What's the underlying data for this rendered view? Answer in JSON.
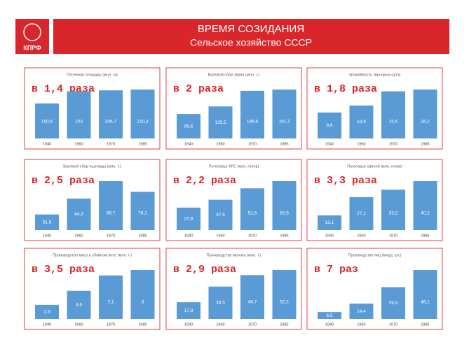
{
  "header": {
    "logo_text": "КПРФ",
    "title": "ВРЕМЯ СОЗИДАНИЯ",
    "subtitle": "Сельское хозяйство СССР"
  },
  "chart_data": [
    {
      "type": "bar",
      "title": "Посевная площадь (млн. га)",
      "annotation": "в 1,4 раза",
      "categories": [
        "1940",
        "1960",
        "1970",
        "1985"
      ],
      "values": [
        150.6,
        203,
        206.7,
        210.3
      ],
      "value_labels": [
        "150,6",
        "203",
        "206,7",
        "210,3"
      ],
      "color": "#5b9bd5"
    },
    {
      "type": "bar",
      "title": "Валовой сбор зерна (млн. т.)",
      "annotation": "в 2 раза",
      "categories": [
        "1940",
        "1960",
        "1970",
        "1985"
      ],
      "values": [
        95.6,
        125.5,
        186.6,
        191.7
      ],
      "value_labels": [
        "95,6",
        "125,5",
        "186,6",
        "191,7"
      ],
      "color": "#5b9bd5"
    },
    {
      "type": "bar",
      "title": "Урожайность зерновых (ц/га)",
      "annotation": "в 1,8 раза",
      "categories": [
        "1940",
        "1960",
        "1970",
        "1985"
      ],
      "values": [
        8.6,
        10.9,
        15.6,
        16.2
      ],
      "value_labels": [
        "8,6",
        "10,9",
        "15,6",
        "16,2"
      ],
      "color": "#5b9bd5"
    },
    {
      "type": "bar",
      "title": "Валовой сбор пшеницы (млн. т.)",
      "annotation": "в 2,5 раза",
      "categories": [
        "1940",
        "1960",
        "1970",
        "1985"
      ],
      "values": [
        31.8,
        64.3,
        99.7,
        78.1
      ],
      "value_labels": [
        "31,8",
        "64,3",
        "99,7",
        "78,1"
      ],
      "color": "#5b9bd5"
    },
    {
      "type": "bar",
      "title": "Поголовье КРС (млн. голов)",
      "annotation": "в 2,2 раза",
      "categories": [
        "1940",
        "1960",
        "1970",
        "1985"
      ],
      "values": [
        27.8,
        37.5,
        51.6,
        60.5
      ],
      "value_labels": [
        "27,8",
        "37,5",
        "51,6",
        "60,5"
      ],
      "color": "#5b9bd5"
    },
    {
      "type": "bar",
      "title": "Поголовье свиней (млн. голов)",
      "annotation": "в 3,3 раза",
      "categories": [
        "1940",
        "1960",
        "1970",
        "1985"
      ],
      "values": [
        12.1,
        27.1,
        33.2,
        40.2
      ],
      "value_labels": [
        "12,1",
        "27,1",
        "33,2",
        "40,2"
      ],
      "color": "#5b9bd5"
    },
    {
      "type": "bar",
      "title": "Производство мяса в убойном весе (млн. т.)",
      "annotation": "в 3,5 раза",
      "categories": [
        "1940",
        "1960",
        "1970",
        "1985"
      ],
      "values": [
        2.3,
        4.6,
        7.1,
        8
      ],
      "value_labels": [
        "2,3",
        "4,6",
        "7,1",
        "8"
      ],
      "color": "#5b9bd5"
    },
    {
      "type": "bar",
      "title": "Производство молока (млн. т.)",
      "annotation": "в 2,9 раза",
      "categories": [
        "1940",
        "1960",
        "1970",
        "1985"
      ],
      "values": [
        17.8,
        34.5,
        46.7,
        52.2
      ],
      "value_labels": [
        "17,8",
        "34,5",
        "46,7",
        "52,2"
      ],
      "color": "#5b9bd5"
    },
    {
      "type": "bar",
      "title": "Производство яиц (млрд. шт.)",
      "annotation": "в 7 раз",
      "categories": [
        "1940",
        "1960",
        "1970",
        "1985"
      ],
      "values": [
        6.5,
        14.4,
        29.9,
        46.1
      ],
      "value_labels": [
        "6,5",
        "14,4",
        "29,9",
        "46,1"
      ],
      "color": "#5b9bd5"
    }
  ]
}
